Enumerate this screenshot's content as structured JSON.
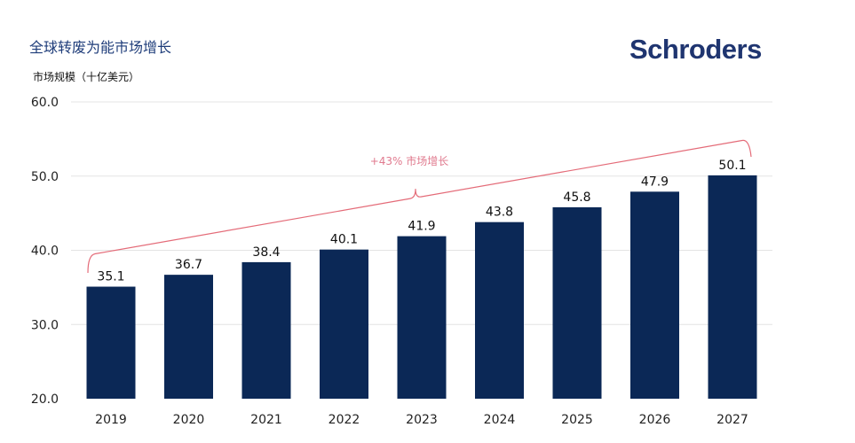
{
  "header": {
    "title": "全球转废为能市场增长",
    "logo_text": "Schroders"
  },
  "colors": {
    "bar": "#0b2856",
    "bracket": "#e46b78",
    "annotation": "#e07a8e",
    "grid": "#e4e4e4",
    "title": "#1f3d7a"
  },
  "chart_data": {
    "type": "bar",
    "title": "全球转废为能市场增长",
    "ylabel": "市场规模（十亿美元）",
    "xlabel": "",
    "categories": [
      "2019",
      "2020",
      "2021",
      "2022",
      "2023",
      "2024",
      "2025",
      "2026",
      "2027"
    ],
    "values": [
      35.1,
      36.7,
      38.4,
      40.1,
      41.9,
      43.8,
      45.8,
      47.9,
      50.1
    ],
    "data_labels": [
      "35.1",
      "36.7",
      "38.4",
      "40.1",
      "41.9",
      "43.8",
      "45.8",
      "47.9",
      "50.1"
    ],
    "ylim": [
      20,
      60
    ],
    "yticks": [
      20,
      30,
      40,
      50,
      60
    ],
    "ytick_labels": [
      "20.0",
      "30.0",
      "40.0",
      "50.0",
      "60.0"
    ],
    "grid": true,
    "annotation": "+43% 市场增长"
  }
}
